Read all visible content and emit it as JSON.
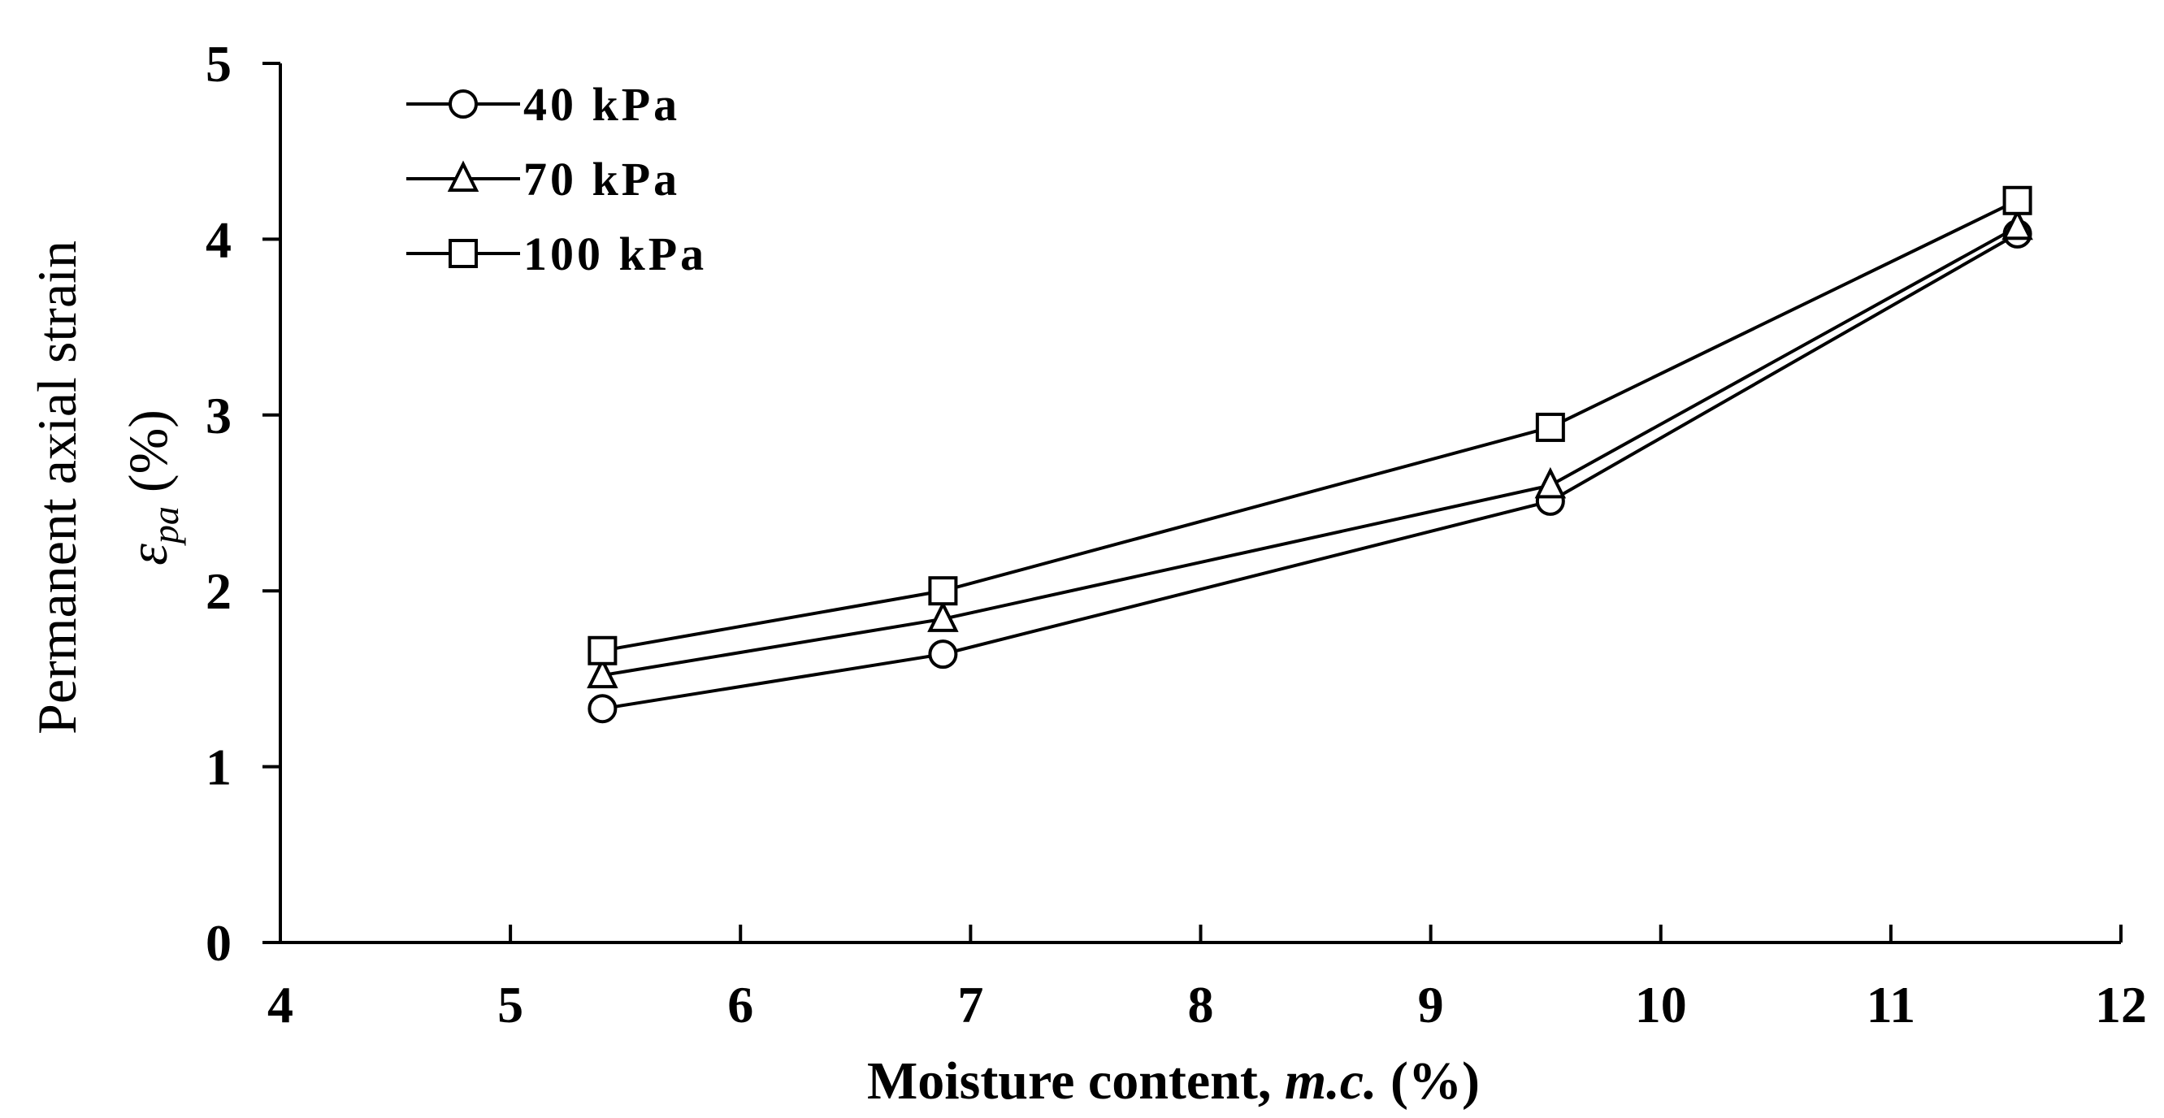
{
  "chart_data": {
    "type": "line",
    "x": [
      5.4,
      6.88,
      9.52,
      11.55
    ],
    "series": [
      {
        "name": "40 kPa",
        "marker": "circle",
        "values": [
          1.33,
          1.64,
          2.51,
          4.03
        ]
      },
      {
        "name": "70 kPa",
        "marker": "triangle",
        "values": [
          1.52,
          1.84,
          2.6,
          4.07
        ]
      },
      {
        "name": "100 kPa",
        "marker": "square",
        "values": [
          1.66,
          2.0,
          2.93,
          4.22
        ]
      }
    ],
    "xlim": [
      4,
      12
    ],
    "ylim": [
      0,
      5
    ],
    "xticks": [
      4,
      5,
      6,
      7,
      8,
      9,
      10,
      11,
      12
    ],
    "yticks": [
      0,
      1,
      2,
      3,
      4,
      5
    ],
    "xlabel": {
      "text": "Moisture content, ",
      "italic": "m.c.",
      "suffix": " (%)"
    },
    "ylabel": {
      "line1": "Permanent axial strain",
      "symbol": "ε",
      "subscript": "pa",
      "unit": " (%)"
    },
    "legend_position": "top-left",
    "grid": false,
    "line_color": "#000000",
    "marker_fill": "#ffffff"
  }
}
